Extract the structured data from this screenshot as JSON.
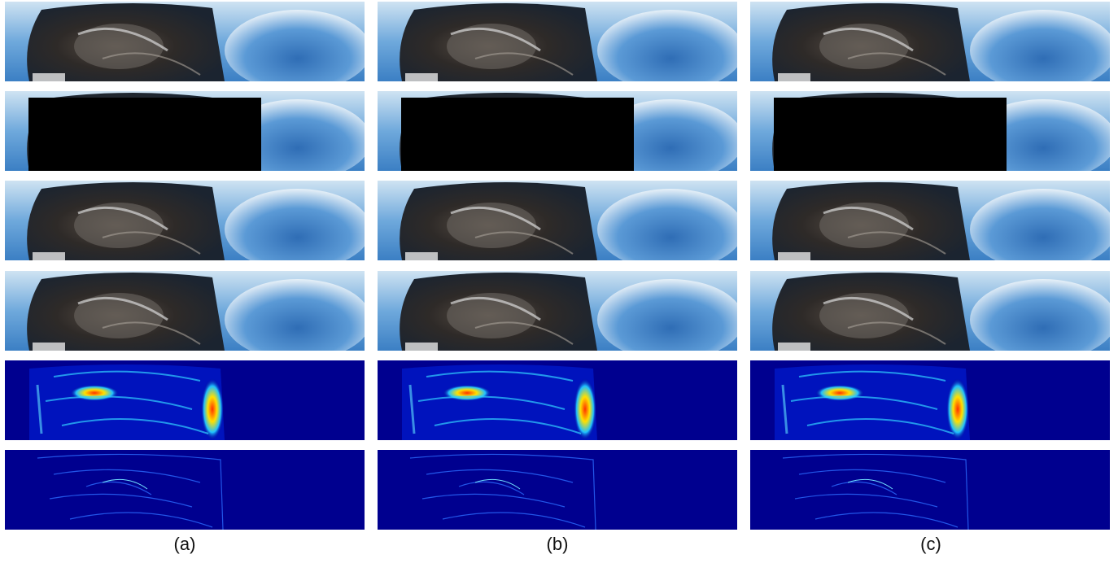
{
  "columns": [
    {
      "label": "(a)"
    },
    {
      "label": "(b)"
    },
    {
      "label": "(c)"
    }
  ]
}
